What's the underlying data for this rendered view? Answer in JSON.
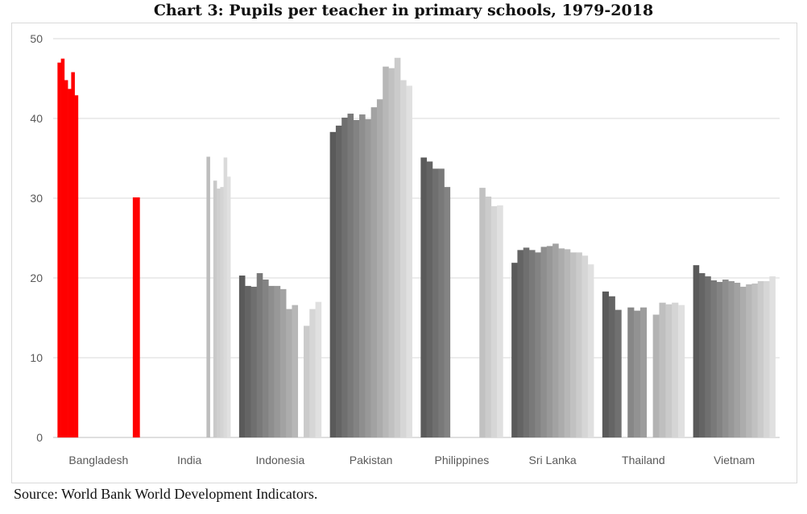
{
  "title": "Chart 3: Pupils per teacher in primary schools, 1979-2018",
  "source": "Source: World Bank World Development Indicators.",
  "colors": {
    "highlight": "#ff0000",
    "grey_dark": "#5a5a5a",
    "grey_light": "#e0e0e0",
    "gridline": "#d9d9d9",
    "axis_text": "#595959"
  },
  "chart_data": {
    "type": "bar",
    "y_ticks": [
      0,
      10,
      20,
      30,
      40,
      50
    ],
    "ylim": [
      0,
      50
    ],
    "grid": true,
    "groups": [
      {
        "name": "Bangladesh",
        "highlight": true,
        "values": [
          47.0,
          47.5,
          44.8,
          43.7,
          45.8,
          42.9,
          null,
          null,
          null,
          null,
          null,
          null,
          null,
          null,
          null,
          null,
          null,
          null,
          null,
          null,
          null,
          null,
          30.1,
          30.1
        ]
      },
      {
        "name": "India",
        "highlight": false,
        "values": [
          null,
          null,
          null,
          null,
          null,
          null,
          null,
          null,
          null,
          null,
          null,
          null,
          null,
          null,
          null,
          null,
          null,
          35.2,
          null,
          32.2,
          31.2,
          31.4,
          35.1,
          32.7
        ]
      },
      {
        "name": "Indonesia",
        "highlight": false,
        "values": [
          20.3,
          19.0,
          18.9,
          20.6,
          19.8,
          19.0,
          19.0,
          18.6,
          16.1,
          16.6,
          null,
          14.0,
          16.1,
          17.0
        ]
      },
      {
        "name": "Pakistan",
        "highlight": false,
        "values": [
          38.3,
          39.1,
          40.1,
          40.6,
          39.8,
          40.5,
          39.9,
          41.4,
          42.4,
          46.5,
          46.3,
          47.6,
          44.8,
          44.1
        ]
      },
      {
        "name": "Philippines",
        "highlight": false,
        "values": [
          35.1,
          34.6,
          33.7,
          33.7,
          31.4,
          null,
          null,
          null,
          null,
          null,
          31.3,
          30.2,
          29.0,
          29.1
        ]
      },
      {
        "name": "Sri Lanka",
        "highlight": false,
        "values": [
          21.9,
          23.5,
          23.8,
          23.5,
          23.2,
          23.9,
          24.0,
          24.3,
          23.7,
          23.6,
          23.2,
          23.2,
          22.8,
          21.7
        ]
      },
      {
        "name": "Thailand",
        "highlight": false,
        "values": [
          18.3,
          17.7,
          16.0,
          null,
          16.3,
          15.9,
          16.3,
          null,
          15.4,
          16.9,
          16.7,
          16.9,
          16.6
        ]
      },
      {
        "name": "Vietnam",
        "highlight": false,
        "values": [
          21.6,
          20.6,
          20.2,
          19.7,
          19.5,
          19.8,
          19.6,
          19.4,
          18.9,
          19.2,
          19.3,
          19.6,
          19.6,
          20.2
        ]
      }
    ]
  }
}
